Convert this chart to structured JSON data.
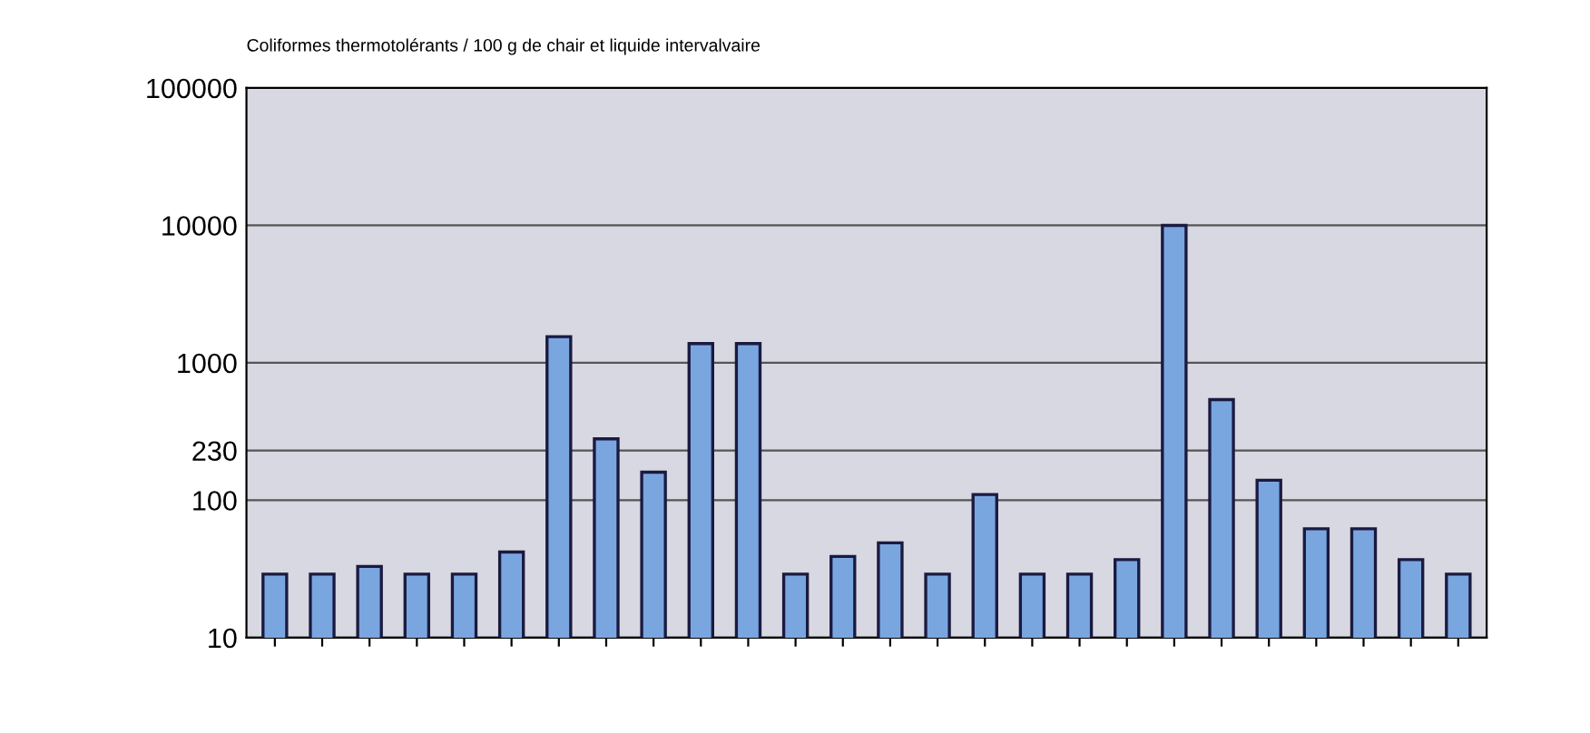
{
  "chart_data": {
    "type": "bar",
    "title": "Coliformes thermotolérants / 100 g de chair et liquide intervalvaire",
    "categories": [
      null,
      null,
      null,
      null,
      null,
      null,
      null,
      null,
      null,
      null,
      null,
      null,
      null,
      null,
      null,
      null,
      null,
      null,
      null,
      null,
      null,
      null,
      null,
      null,
      null,
      null
    ],
    "series": [
      {
        "color": "#7aa6e0",
        "values": [
          29,
          29,
          33,
          29,
          29,
          42,
          1550,
          280,
          160,
          1380,
          1380,
          29,
          39,
          49,
          29,
          110,
          29,
          29,
          37,
          10000,
          540,
          140,
          62,
          62,
          37,
          29
        ]
      }
    ],
    "log": true,
    "ylim": [
      10,
      100000
    ],
    "yticks": [
      10,
      100,
      230,
      1000,
      10000,
      100000
    ],
    "grid": "y"
  }
}
